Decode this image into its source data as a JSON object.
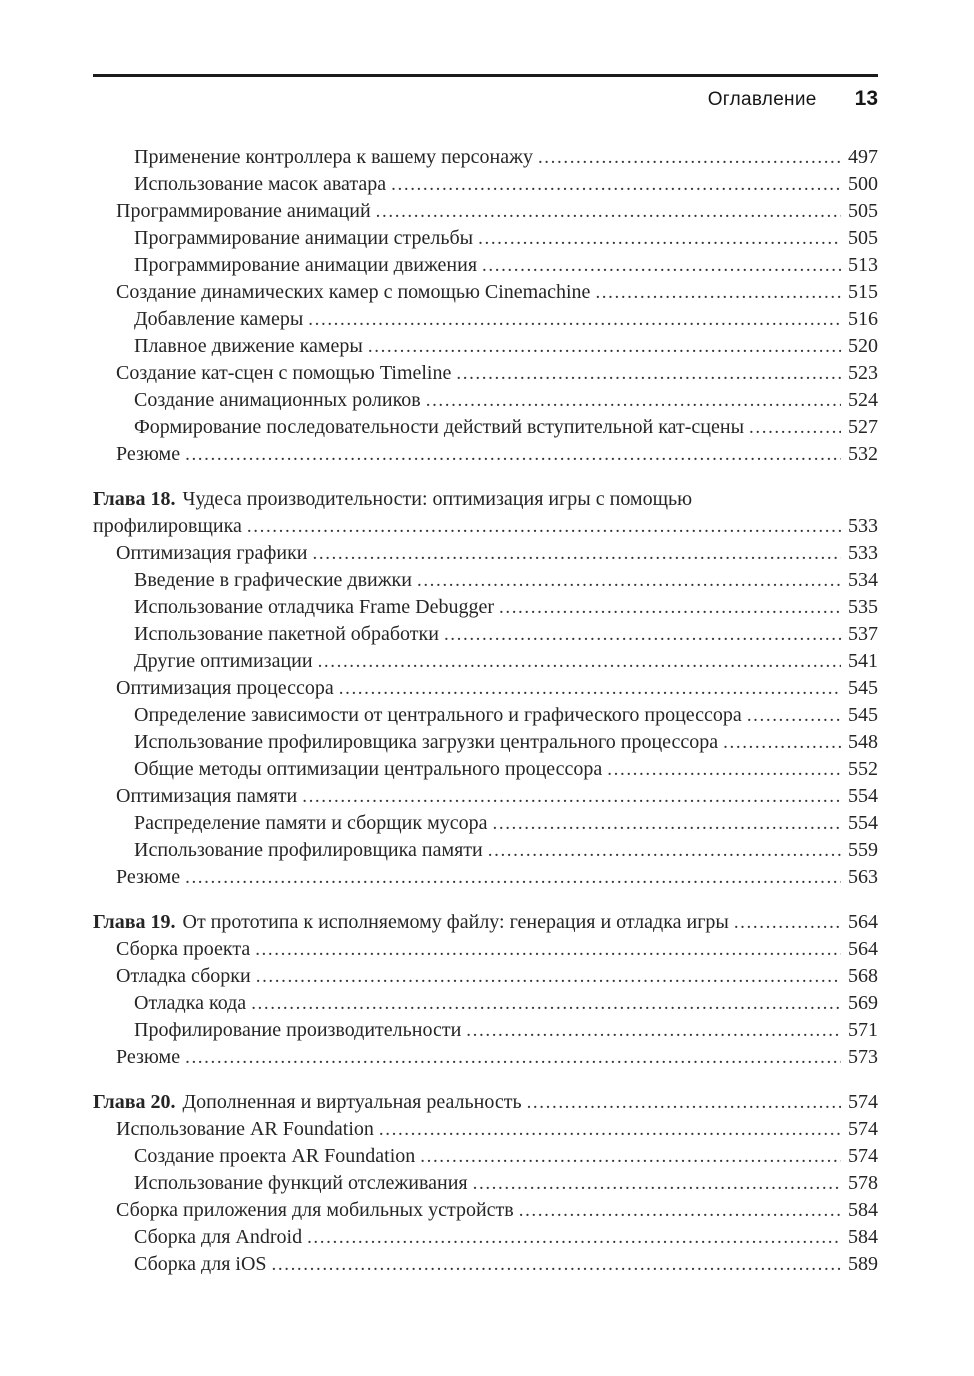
{
  "header": {
    "title": "Оглавление",
    "page_number": "13"
  },
  "toc": {
    "entries": [
      {
        "level": 2,
        "title": "Применение контроллера к вашему персонажу",
        "page": "497"
      },
      {
        "level": 2,
        "title": "Использование масок аватара",
        "page": "500"
      },
      {
        "level": 1,
        "title": "Программирование анимаций",
        "page": "505"
      },
      {
        "level": 2,
        "title": "Программирование анимации стрельбы",
        "page": "505"
      },
      {
        "level": 2,
        "title": "Программирование анимации движения",
        "page": "513"
      },
      {
        "level": 1,
        "title": "Создание динамических камер с помощью Cinemachine",
        "page": "515"
      },
      {
        "level": 2,
        "title": "Добавление камеры",
        "page": "516"
      },
      {
        "level": 2,
        "title": "Плавное движение камеры",
        "page": "520"
      },
      {
        "level": 1,
        "title": "Создание кат-сцен с помощью Timeline",
        "page": "523"
      },
      {
        "level": 2,
        "title": "Создание анимационных роликов",
        "page": "524"
      },
      {
        "level": 2,
        "title": "Формирование последовательности действий вступительной кат-сцены",
        "page": "527"
      },
      {
        "level": 1,
        "title": "Резюме",
        "page": "532"
      },
      {
        "level": 0,
        "prefix": "Глава 18.",
        "title": "Чудеса производительности: оптимизация игры с помощью",
        "spacer": true
      },
      {
        "level": 0,
        "title": "профилировщика",
        "page": "533"
      },
      {
        "level": 1,
        "title": "Оптимизация графики",
        "page": "533"
      },
      {
        "level": 2,
        "title": "Введение в графические движки",
        "page": "534"
      },
      {
        "level": 2,
        "title": "Использование отладчика Frame Debugger",
        "page": "535"
      },
      {
        "level": 2,
        "title": "Использование пакетной обработки",
        "page": "537"
      },
      {
        "level": 2,
        "title": "Другие оптимизации",
        "page": "541"
      },
      {
        "level": 1,
        "title": "Оптимизация процессора",
        "page": "545"
      },
      {
        "level": 2,
        "title": "Определение зависимости от центрального и графического процессора",
        "page": "545"
      },
      {
        "level": 2,
        "title": "Использование профилировщика загрузки центрального процессора",
        "page": "548"
      },
      {
        "level": 2,
        "title": "Общие методы оптимизации центрального процессора",
        "page": "552"
      },
      {
        "level": 1,
        "title": "Оптимизация памяти",
        "page": "554"
      },
      {
        "level": 2,
        "title": "Распределение памяти и сборщик мусора",
        "page": "554"
      },
      {
        "level": 2,
        "title": "Использование профилировщика памяти",
        "page": "559"
      },
      {
        "level": 1,
        "title": "Резюме",
        "page": "563"
      },
      {
        "level": 0,
        "prefix": "Глава 19.",
        "title": "От прототипа к исполняемому файлу: генерация и отладка игры",
        "page": "564",
        "spacer": true
      },
      {
        "level": 1,
        "title": "Сборка проекта",
        "page": "564"
      },
      {
        "level": 1,
        "title": "Отладка сборки",
        "page": "568"
      },
      {
        "level": 2,
        "title": "Отладка кода",
        "page": "569"
      },
      {
        "level": 2,
        "title": "Профилирование производительности",
        "page": "571"
      },
      {
        "level": 1,
        "title": "Резюме",
        "page": "573"
      },
      {
        "level": 0,
        "prefix": "Глава 20.",
        "title": "Дополненная и виртуальная реальность",
        "page": "574",
        "spacer": true
      },
      {
        "level": 1,
        "title": "Использование AR Foundation",
        "page": "574"
      },
      {
        "level": 2,
        "title": "Создание проекта AR Foundation",
        "page": "574"
      },
      {
        "level": 2,
        "title": "Использование функций отслеживания",
        "page": "578"
      },
      {
        "level": 1,
        "title": "Сборка приложения для мобильных устройств",
        "page": "584"
      },
      {
        "level": 2,
        "title": "Сборка для Android",
        "page": "584"
      },
      {
        "level": 2,
        "title": "Сборка для iOS",
        "page": "589"
      }
    ]
  }
}
